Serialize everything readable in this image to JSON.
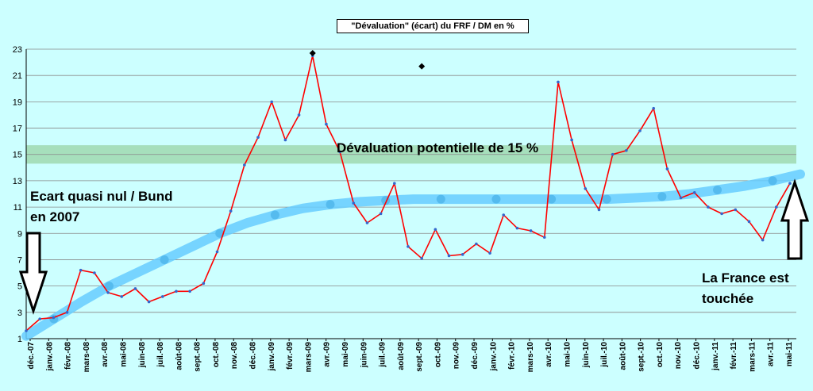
{
  "chart_data": {
    "type": "line",
    "title": "\"Dévaluation\" (écart) du FRF / DM en %",
    "xlabel": "",
    "ylabel": "",
    "ylim": [
      1,
      23
    ],
    "yticks": [
      1,
      3,
      5,
      7,
      9,
      11,
      13,
      15,
      17,
      19,
      21,
      23
    ],
    "grid": true,
    "background": "#ccffff",
    "x_tick_labels": [
      "déc.-07",
      "janv.-08",
      "févr.-08",
      "mars-08",
      "avr.-08",
      "mai-08",
      "juin-08",
      "juil.-08",
      "août-08",
      "sept.-08",
      "oct.-08",
      "nov.-08",
      "déc.-08",
      "janv.-09",
      "févr.-09",
      "mars-09",
      "avr.-09",
      "mai-09",
      "juin-09",
      "juil.-09",
      "août-09",
      "sept.-09",
      "oct.-09",
      "nov.-09",
      "déc.-09",
      "janv.-10",
      "févr.-10",
      "mars-10",
      "avr.-10",
      "mai-10",
      "juin-10",
      "juil.-10",
      "août-10",
      "sept.-10",
      "oct.-10",
      "nov.-10",
      "déc.-10",
      "janv.-11",
      "févr.-11",
      "mars-11",
      "avr.-11",
      "mai-11"
    ],
    "series": [
      {
        "color": "#ff0000",
        "marker_color": "#3366cc",
        "values": [
          1.6,
          2.5,
          2.6,
          3.0,
          6.2,
          6.0,
          4.5,
          4.2,
          4.8,
          3.8,
          4.2,
          4.6,
          4.6,
          5.2,
          7.6,
          10.7,
          14.2,
          16.3,
          19.0,
          16.1,
          18.0,
          22.5,
          17.3,
          15.2,
          11.3,
          9.8,
          10.5,
          12.8,
          8.0,
          7.1,
          9.3,
          7.3,
          7.4,
          8.2,
          7.5,
          10.4,
          9.4,
          9.2,
          8.7,
          20.5,
          16.1,
          12.4,
          10.8,
          15.0,
          15.3,
          16.8,
          18.5,
          13.9,
          11.7,
          12.1,
          11.0,
          10.5,
          10.8,
          9.9,
          8.5,
          11.0,
          12.8
        ]
      }
    ],
    "trend": {
      "color": "#66ccff",
      "values": [
        1.2,
        2.5,
        3.8,
        5.0,
        6.0,
        7.0,
        8.0,
        9.0,
        9.8,
        10.4,
        10.9,
        11.2,
        11.4,
        11.5,
        11.6,
        11.6,
        11.6,
        11.6,
        11.6,
        11.6,
        11.6,
        11.6,
        11.7,
        11.8,
        12.0,
        12.3,
        12.6,
        13.0,
        13.5
      ]
    },
    "band": {
      "range": [
        14.3,
        15.7
      ],
      "color": "#9fd9b0"
    },
    "peak_markers": [
      {
        "x_index": 21,
        "value": 22.7
      },
      {
        "x_index": 29,
        "value": 21.7
      }
    ],
    "annotations": {
      "band_label": "Dévaluation potentielle de 15 %",
      "left_label_1": "Ecart quasi nul / Bund",
      "left_label_2": "en 2007",
      "right_label_1": "La France est",
      "right_label_2": "touchée"
    }
  }
}
